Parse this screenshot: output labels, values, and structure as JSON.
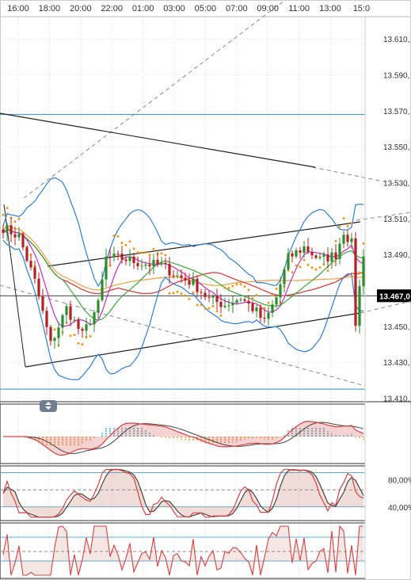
{
  "chart_data": {
    "type": "candlestick",
    "time_labels": [
      "16:00",
      "18:00",
      "20:00",
      "22:00",
      "01:00",
      "03:00",
      "05:00",
      "07:00",
      "09:00",
      "11:00",
      "13:00",
      "15:0"
    ],
    "price_axis": {
      "labels": [
        "13.610,",
        "13.590,",
        "13.570,",
        "13.550,",
        "13.530,",
        "13.510,",
        "13.490,",
        "13.467,0",
        "13.450,",
        "13.430,",
        "13.410,"
      ],
      "values": [
        13.61,
        13.59,
        13.57,
        13.55,
        13.53,
        13.51,
        13.49,
        13.467,
        13.45,
        13.43,
        13.41
      ],
      "range": [
        13.408,
        13.622
      ],
      "current_label": "13.467,0",
      "current_value": 13.467
    },
    "oscillator_axis": {
      "labels": [
        "80,00%",
        "40,00%"
      ],
      "values": [
        80,
        40
      ],
      "range": [
        20,
        100
      ]
    },
    "colors": {
      "up": "#2e8b2e",
      "down": "#b22222",
      "bollinger": "#2f7fd6",
      "ma_red": "#d94040",
      "ma_green": "#3aa83a",
      "ma_magenta": "#c030c0",
      "ma_orange": "#f0a040",
      "sar": "#f5900a",
      "trendline": "#222222",
      "dashed": "#888888",
      "hline": "#2f8fc8",
      "current_bg": "#000000"
    },
    "horizontal_levels": [
      13.568,
      13.415
    ]
  }
}
